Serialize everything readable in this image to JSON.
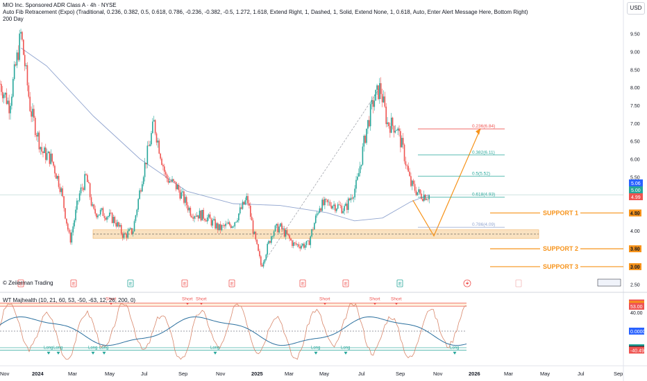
{
  "header": {
    "title": "MIO Inc. Sponsored ADR Class A · 4h · NYSE",
    "fib_indicator": "Auto Fib Retracement (Expo) (Traditional, 0.236, 0.382, 0.5, 0.618, 0.786, -0.236, -0.382, -0.5, 1.272, 1.618, Extend Right, 1, Dashed, 1, Solid, Extend None, 1, 0.618, Auto, Enter Alert Message Here, Bottom Right)",
    "ma_label": "200 Day",
    "currency_button": "USD",
    "watermark": "© Zeiierman Trading"
  },
  "colors": {
    "up": "#26a69a",
    "down": "#ef5350",
    "ma": "#90a4cf",
    "support": "#f7931a",
    "zone": "#f8d6a6",
    "wt_teal": "#26a69a",
    "wt_slow": "#2a6f9e",
    "wt_fast": "#d8866a"
  },
  "chart_data": {
    "type": "candlestick",
    "price_axis": {
      "ticks": [
        "9.50",
        "9.00",
        "8.50",
        "8.00",
        "7.50",
        "7.00",
        "6.50",
        "6.00",
        "5.50",
        "5.00",
        "4.50",
        "4.00",
        "3.50",
        "3.00",
        "2.50"
      ],
      "range": [
        2.35,
        9.9
      ]
    },
    "time_axis": [
      "Nov",
      "2024",
      "Mar",
      "May",
      "Jul",
      "Sep",
      "Nov",
      "2025",
      "Mar",
      "May",
      "Jul",
      "Sep",
      "Nov",
      "2026",
      "Mar",
      "May",
      "Jul",
      "Sep"
    ],
    "price_path": [
      [
        0,
        8.1
      ],
      [
        0.02,
        7.5
      ],
      [
        0.045,
        9.5
      ],
      [
        0.065,
        7.4
      ],
      [
        0.09,
        6.2
      ],
      [
        0.11,
        6.0
      ],
      [
        0.13,
        5.2
      ],
      [
        0.15,
        3.7
      ],
      [
        0.17,
        5.0
      ],
      [
        0.185,
        5.5
      ],
      [
        0.2,
        4.5
      ],
      [
        0.22,
        4.5
      ],
      [
        0.245,
        4.3
      ],
      [
        0.265,
        3.85
      ],
      [
        0.285,
        4.0
      ],
      [
        0.305,
        5.5
      ],
      [
        0.33,
        7.0
      ],
      [
        0.355,
        5.5
      ],
      [
        0.38,
        5.2
      ],
      [
        0.41,
        4.5
      ],
      [
        0.44,
        4.4
      ],
      [
        0.47,
        4.05
      ],
      [
        0.5,
        4.2
      ],
      [
        0.53,
        4.9
      ],
      [
        0.545,
        3.85
      ],
      [
        0.56,
        3.0
      ],
      [
        0.585,
        4.0
      ],
      [
        0.6,
        4.1
      ],
      [
        0.63,
        3.6
      ],
      [
        0.66,
        3.6
      ],
      [
        0.685,
        4.7
      ],
      [
        0.71,
        4.75
      ],
      [
        0.74,
        4.6
      ],
      [
        0.765,
        5.3
      ],
      [
        0.785,
        6.8
      ],
      [
        0.8,
        7.6
      ],
      [
        0.815,
        8.0
      ],
      [
        0.83,
        7.0
      ],
      [
        0.85,
        6.9
      ],
      [
        0.865,
        6.2
      ],
      [
        0.88,
        5.3
      ],
      [
        0.9,
        5.0
      ],
      [
        0.92,
        4.98
      ]
    ],
    "ma_200": [
      [
        0.045,
        9.1
      ],
      [
        0.1,
        8.6
      ],
      [
        0.2,
        7.2
      ],
      [
        0.3,
        6.0
      ],
      [
        0.4,
        5.1
      ],
      [
        0.5,
        4.75
      ],
      [
        0.6,
        4.7
      ],
      [
        0.7,
        4.5
      ],
      [
        0.76,
        4.27
      ],
      [
        0.82,
        4.35
      ],
      [
        0.88,
        4.8
      ],
      [
        0.92,
        5.0
      ]
    ],
    "projection": [
      [
        0.885,
        4.85
      ],
      [
        0.93,
        3.85
      ],
      [
        1.03,
        6.85
      ]
    ],
    "fib_levels": [
      {
        "label": "0.236(6.84)",
        "price": 6.84,
        "color": "#ef5350"
      },
      {
        "label": "0.382(6.11)",
        "price": 6.11,
        "color": "#26a69a"
      },
      {
        "label": "0.5(5.52)",
        "price": 5.52,
        "color": "#26a69a"
      },
      {
        "label": "0.618(4.93)",
        "price": 4.93,
        "color": "#26a69a"
      },
      {
        "label": "0.786(4.09)",
        "price": 4.09,
        "color": "#90a4cf"
      }
    ],
    "supports": [
      {
        "label": "SUPPORT 1",
        "price": 4.49,
        "tag": "4.49"
      },
      {
        "label": "SUPPORT 2",
        "price": 3.49,
        "tag": "3.49"
      },
      {
        "label": "SUPPORT 3",
        "price": 2.99,
        "tag": "2.99"
      }
    ],
    "zone": {
      "low": 3.78,
      "high": 4.02
    },
    "price_tags": [
      {
        "text": "5.06",
        "price": 5.06,
        "color": "#2962ff"
      },
      {
        "text": "5.00",
        "price": 5.0,
        "color": "#26a69a"
      },
      {
        "text": "4.99",
        "price": 4.99,
        "color": "#ef5350"
      }
    ],
    "events": [
      "E",
      "E",
      "E",
      "E",
      "E",
      "E",
      "E",
      "E"
    ],
    "wt_indicator": {
      "title": "WT Majhealth (10, 21, 60, 53, -50, -63, 12, 26, 200, 0)",
      "axis_labels": [
        {
          "text": "60.00",
          "value": 60,
          "color": "#ef5350"
        },
        {
          "text": "57.12",
          "value": 57.12,
          "color": "#f7931a"
        },
        {
          "text": "53.00",
          "value": 53,
          "color": "#ef5350"
        },
        {
          "text": "40.00",
          "value": 40,
          "color": "#787b86"
        },
        {
          "text": "0.0000",
          "value": 0,
          "color": "#2962ff"
        },
        {
          "text": "-35.35",
          "value": -35.35,
          "color": "#26a69a"
        },
        {
          "text": "-38.93",
          "value": -38.93,
          "color": "#131722"
        },
        {
          "text": "-40.49",
          "value": -40.49,
          "color": "#ef5350"
        }
      ],
      "short_signals": [
        "Short",
        "Short",
        "Short",
        "Short",
        "Short",
        "Short"
      ],
      "long_signals": [
        "Long",
        "Long",
        "Long",
        "Long",
        "Long",
        "Long",
        "Long",
        "Long"
      ],
      "range": [
        -68,
        68
      ]
    }
  }
}
